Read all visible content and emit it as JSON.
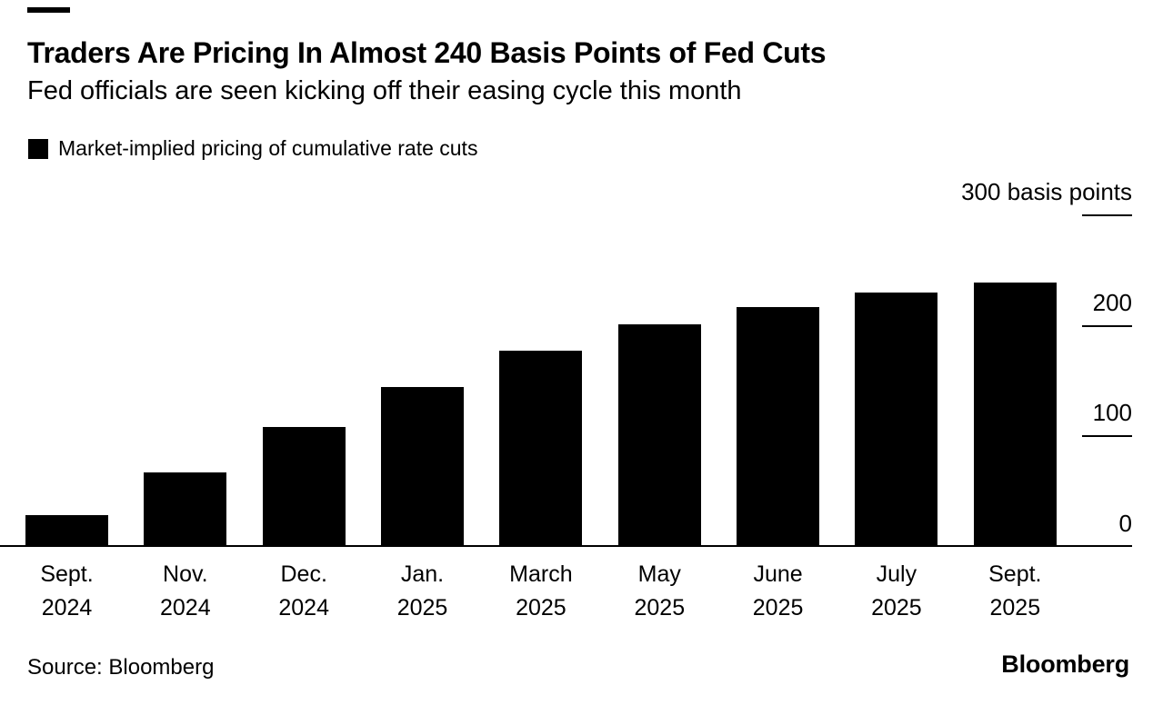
{
  "header": {
    "title": "Traders Are Pricing In Almost 240 Basis Points of Fed Cuts",
    "subtitle": "Fed officials are seen kicking off their easing cycle this month"
  },
  "legend": {
    "label": "Market-implied pricing of cumulative rate cuts",
    "swatch_color": "#000000"
  },
  "footer": {
    "source": "Source: Bloomberg",
    "brand": "Bloomberg"
  },
  "chart_data": {
    "type": "bar",
    "title": "Market-implied pricing of cumulative rate cuts",
    "unit": "basis points",
    "categories": [
      {
        "month": "Sept.",
        "year": "2024"
      },
      {
        "month": "Nov.",
        "year": "2024"
      },
      {
        "month": "Dec.",
        "year": "2024"
      },
      {
        "month": "Jan.",
        "year": "2025"
      },
      {
        "month": "March",
        "year": "2025"
      },
      {
        "month": "May",
        "year": "2025"
      },
      {
        "month": "June",
        "year": "2025"
      },
      {
        "month": "July",
        "year": "2025"
      },
      {
        "month": "Sept.",
        "year": "2025"
      }
    ],
    "values": [
      28,
      67,
      108,
      144,
      177,
      201,
      216,
      229,
      238
    ],
    "bar_color": "#000000",
    "ylim": [
      0,
      300
    ],
    "yticks": [
      {
        "value": 300,
        "label": "300 basis points"
      },
      {
        "value": 200,
        "label": "200"
      },
      {
        "value": 100,
        "label": "100"
      },
      {
        "value": 0,
        "label": "0"
      }
    ],
    "grid": false,
    "legend_position": "top-left",
    "axis_side": "right"
  }
}
